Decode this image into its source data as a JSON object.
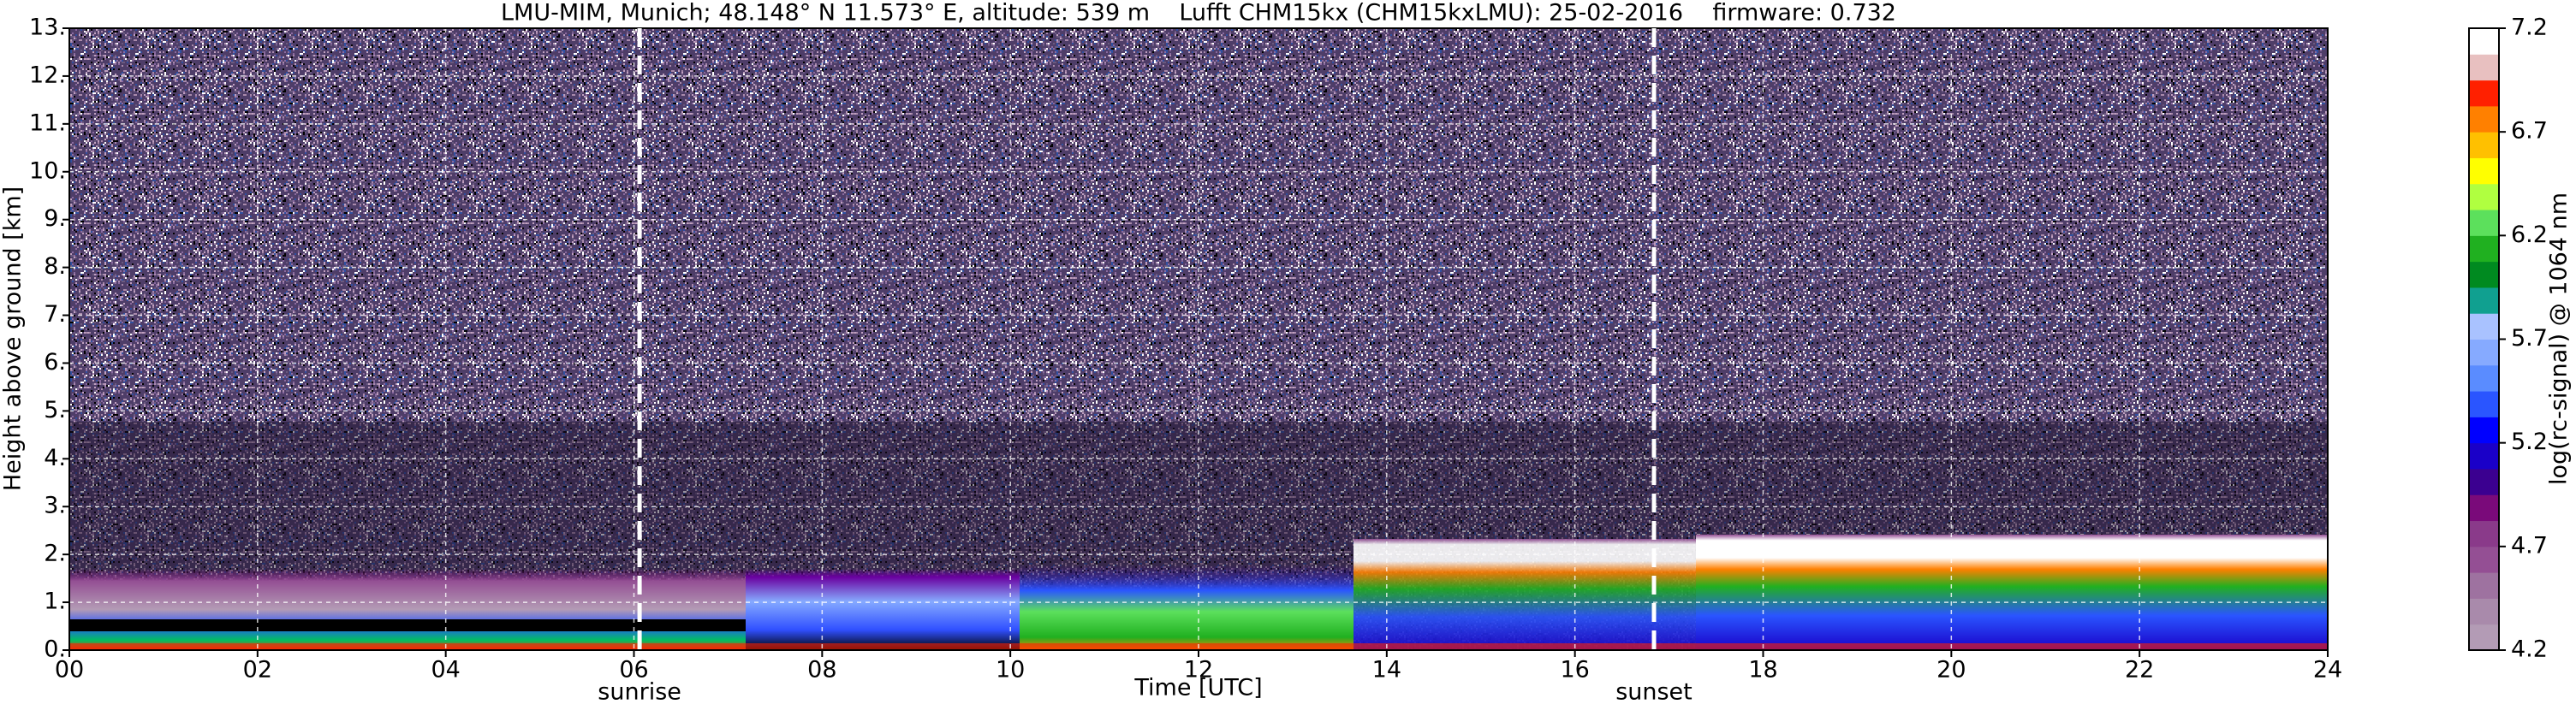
{
  "chart_data": {
    "type": "heatmap",
    "title": "LMU-MIM, Munich; 48.148° N 11.573° E, altitude: 539 m    Lufft CHM15kx (CHM15kxLMU): 25-02-2016    firmware: 0.732",
    "xlabel": "Time [UTC]",
    "ylabel": "Height above ground [km]",
    "xlim": [
      0,
      24
    ],
    "ylim": [
      0,
      13
    ],
    "xticks": [
      {
        "value": 0,
        "label": "00"
      },
      {
        "value": 2,
        "label": "02"
      },
      {
        "value": 4,
        "label": "04"
      },
      {
        "value": 6,
        "label": "06"
      },
      {
        "value": 8,
        "label": "08"
      },
      10,
      12,
      14,
      16,
      18,
      20,
      22,
      24
    ],
    "yticks": [
      {
        "value": 0,
        "label": "0."
      },
      {
        "value": 1,
        "label": "1."
      },
      {
        "value": 2,
        "label": "2."
      },
      {
        "value": 3,
        "label": "3."
      },
      {
        "value": 4,
        "label": "4."
      },
      {
        "value": 5,
        "label": "5."
      },
      {
        "value": 6,
        "label": "6."
      },
      {
        "value": 7,
        "label": "7."
      },
      {
        "value": 8,
        "label": "8."
      },
      {
        "value": 9,
        "label": "9."
      },
      {
        "value": 10,
        "label": "10."
      },
      {
        "value": 11,
        "label": "11."
      },
      {
        "value": 12,
        "label": "12."
      },
      {
        "value": 13,
        "label": "13."
      }
    ],
    "grid": true,
    "annotations": [
      {
        "label": "sunrise",
        "x": 6.06
      },
      {
        "label": "sunset",
        "x": 16.84
      }
    ],
    "colorbar": {
      "label": "log(rc-signal) @ 1064 nm",
      "lim": [
        4.2,
        7.2
      ],
      "ticks": [
        4.2,
        4.7,
        5.2,
        5.7,
        6.2,
        6.7,
        7.2
      ],
      "colors": [
        "#b39bb5",
        "#a98aab",
        "#9e72a0",
        "#944f94",
        "#8a3a8a",
        "#7a0a7a",
        "#3b0090",
        "#1a00c8",
        "#0000ff",
        "#2a55ff",
        "#5a8cff",
        "#86aaff",
        "#a9c2ff",
        "#10a090",
        "#008a20",
        "#20b020",
        "#5ce05c",
        "#b0ff40",
        "#ffff00",
        "#ffc000",
        "#ff8000",
        "#ff2000",
        "#e8c0c0",
        "#ffffff"
      ]
    }
  }
}
